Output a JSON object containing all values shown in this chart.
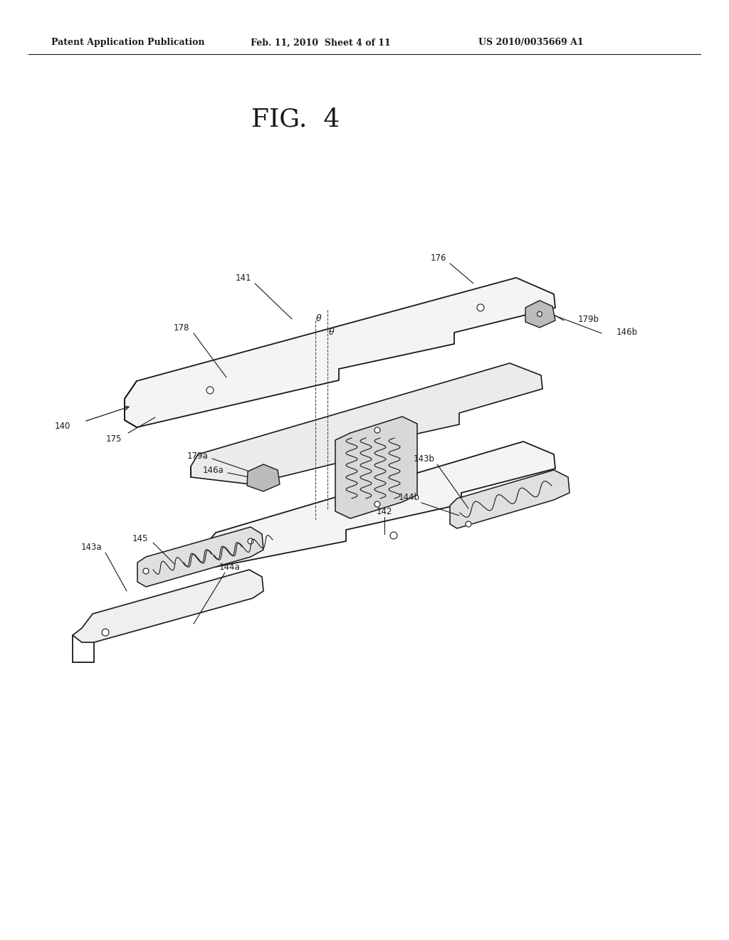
{
  "bg_color": "#ffffff",
  "header_left": "Patent Application Publication",
  "header_mid": "Feb. 11, 2010  Sheet 4 of 11",
  "header_right": "US 2010/0035669 A1",
  "fig_label": "FIG.  4",
  "line_color": "#1a1a1a",
  "fill_light": "#f4f4f4",
  "fill_mid": "#e8e8e8",
  "fill_dark": "#cccccc",
  "label_fontsize": 8.5,
  "header_fontsize": 9.0,
  "fig_fontsize": 26
}
